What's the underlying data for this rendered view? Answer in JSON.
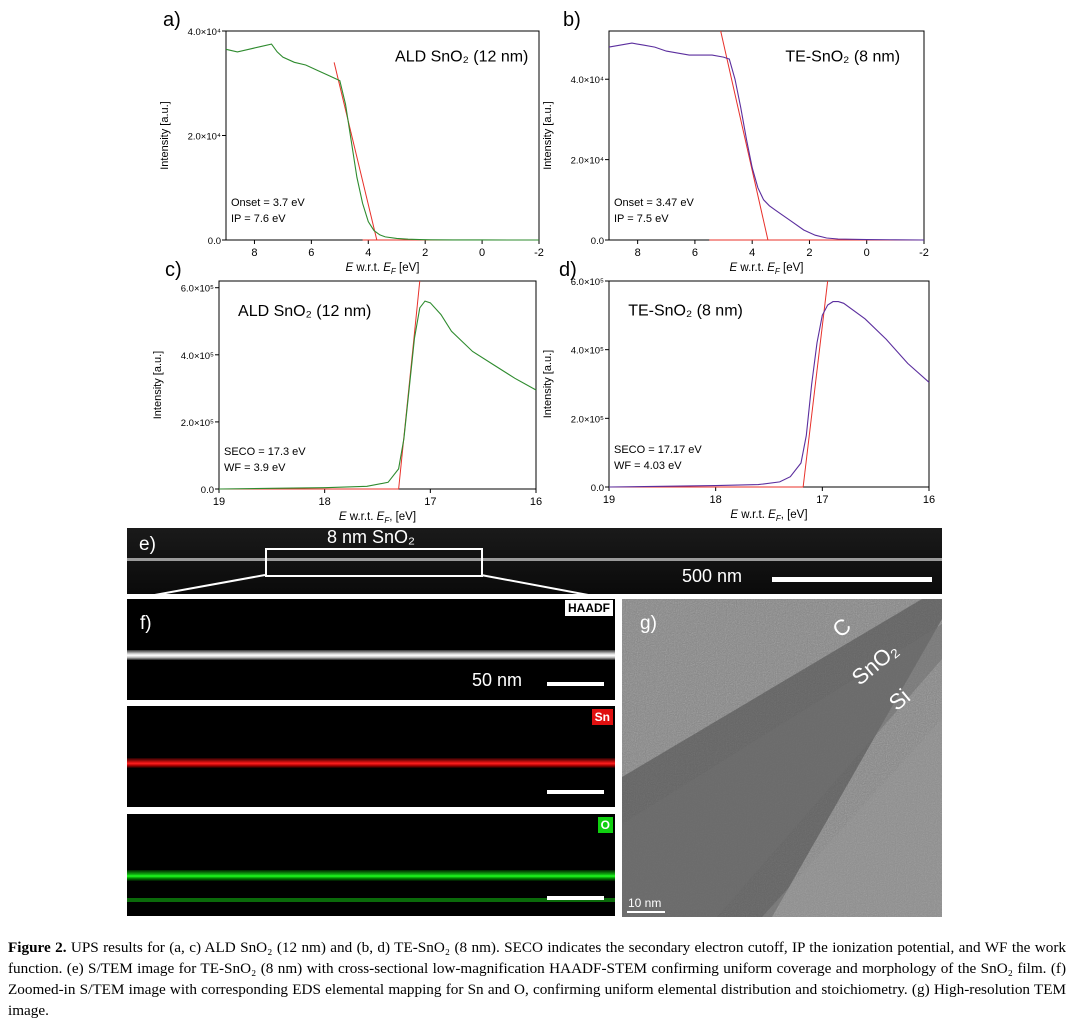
{
  "charts": [
    {
      "panel": "a)",
      "type": "line",
      "title": "ALD SnO₂ (12 nm)",
      "xlabel": "E w.r.t. E_F [eV]",
      "ylabel": "Intensity [a.u.]",
      "xlim": [
        9,
        -2
      ],
      "ylim": [
        0,
        40000
      ],
      "xticks": [
        "8",
        "6",
        "4",
        "2",
        "0",
        "-2"
      ],
      "yticks": [
        "0.0",
        "2.0×10⁴",
        "4.0×10⁴"
      ],
      "annotations": [
        "Onset = 3.7 eV",
        "IP = 7.6 eV"
      ],
      "series_color": "#2e8b2e",
      "x": [
        9,
        8.6,
        8.2,
        7.8,
        7.4,
        7.2,
        7.0,
        6.6,
        6.2,
        5.8,
        5.4,
        5.0,
        4.8,
        4.6,
        4.4,
        4.2,
        4.0,
        3.8,
        3.6,
        3.4,
        3.0,
        2.6,
        2.2,
        1.8,
        1.0,
        0,
        -1,
        -2
      ],
      "y": [
        36500,
        36000,
        36500,
        37000,
        37500,
        36000,
        35000,
        34000,
        33500,
        32500,
        31500,
        30500,
        26000,
        19000,
        12000,
        7000,
        3500,
        1800,
        1000,
        600,
        300,
        150,
        80,
        40,
        20,
        10,
        5,
        0
      ],
      "fit_lines": [
        {
          "x": [
            5.2,
            3.7
          ],
          "y": [
            34000,
            0
          ]
        },
        {
          "x": [
            4.2,
            -2
          ],
          "y": [
            0,
            0
          ]
        }
      ]
    },
    {
      "panel": "b)",
      "type": "line",
      "title": "TE-SnO₂ (8 nm)",
      "xlabel": "E w.r.t. E_F [eV]",
      "ylabel": "Intensity [a.u.]",
      "xlim": [
        9,
        -2
      ],
      "ylim": [
        0,
        52000
      ],
      "xticks": [
        "8",
        "6",
        "4",
        "2",
        "0",
        "-2"
      ],
      "yticks": [
        "0.0",
        "2.0×10⁴",
        "4.0×10⁴"
      ],
      "annotations": [
        "Onset = 3.47 eV",
        "IP = 7.5 eV"
      ],
      "series_color": "#5b2e9e",
      "x": [
        9,
        8.6,
        8.2,
        7.8,
        7.4,
        7.0,
        6.6,
        6.2,
        5.8,
        5.4,
        5.0,
        4.8,
        4.6,
        4.4,
        4.2,
        4.0,
        3.8,
        3.6,
        3.4,
        3.2,
        3.0,
        2.6,
        2.2,
        1.8,
        1.4,
        1.0,
        0,
        -1,
        -2
      ],
      "y": [
        48000,
        48500,
        49000,
        48500,
        48000,
        47000,
        46500,
        46000,
        46000,
        46000,
        45500,
        45000,
        40000,
        33000,
        25000,
        18000,
        13000,
        10000,
        8500,
        7500,
        6500,
        4500,
        2500,
        1200,
        500,
        250,
        100,
        50,
        0
      ],
      "fit_lines": [
        {
          "x": [
            5.1,
            3.45
          ],
          "y": [
            55000,
            0
          ]
        },
        {
          "x": [
            5.5,
            -2
          ],
          "y": [
            0,
            0
          ]
        }
      ]
    },
    {
      "panel": "c)",
      "type": "line",
      "title": "ALD SnO₂ (12 nm)",
      "xlabel": "E w.r.t. E_F, [eV]",
      "ylabel": "Intensity [a.u.]",
      "xlim": [
        19,
        16
      ],
      "ylim": [
        0,
        620000
      ],
      "xticks": [
        "19",
        "18",
        "17",
        "16"
      ],
      "yticks": [
        "0.0",
        "2.0×10⁵",
        "4.0×10⁵",
        "6.0×10⁵"
      ],
      "annotations": [
        "SECO = 17.3 eV",
        "WF = 3.9 eV"
      ],
      "series_color": "#2e8b2e",
      "x": [
        19,
        18.5,
        18.0,
        17.6,
        17.4,
        17.3,
        17.25,
        17.2,
        17.15,
        17.1,
        17.05,
        17.0,
        16.9,
        16.8,
        16.6,
        16.4,
        16.2,
        16.0
      ],
      "y": [
        0,
        2000,
        4000,
        8000,
        20000,
        60000,
        150000,
        300000,
        450000,
        540000,
        560000,
        555000,
        520000,
        470000,
        410000,
        370000,
        330000,
        295000
      ],
      "fit_lines": [
        {
          "x": [
            17.3,
            17.1
          ],
          "y": [
            0,
            620000
          ]
        },
        {
          "x": [
            19,
            17.3
          ],
          "y": [
            0,
            0
          ]
        }
      ]
    },
    {
      "panel": "d)",
      "type": "line",
      "title": "TE-SnO₂ (8 nm)",
      "xlabel": "E w.r.t. E_F, [eV]",
      "ylabel": "Intensity [a.u.]",
      "xlim": [
        19,
        16
      ],
      "ylim": [
        0,
        600000
      ],
      "xticks": [
        "19",
        "18",
        "17",
        "16"
      ],
      "yticks": [
        "0.0",
        "2.0×10⁵",
        "4.0×10⁵",
        "6.0×10⁵"
      ],
      "annotations": [
        "SECO = 17.17 eV",
        "WF = 4.03 eV"
      ],
      "series_color": "#5b2e9e",
      "x": [
        19,
        18.5,
        18.0,
        17.6,
        17.4,
        17.3,
        17.2,
        17.15,
        17.1,
        17.05,
        17.0,
        16.95,
        16.9,
        16.85,
        16.8,
        16.6,
        16.4,
        16.2,
        16.0
      ],
      "y": [
        0,
        2000,
        4000,
        7000,
        15000,
        30000,
        70000,
        150000,
        300000,
        420000,
        500000,
        530000,
        540000,
        540000,
        535000,
        490000,
        430000,
        360000,
        305000
      ],
      "fit_lines": [
        {
          "x": [
            17.18,
            16.95
          ],
          "y": [
            0,
            620000
          ]
        },
        {
          "x": [
            19,
            17.18
          ],
          "y": [
            0,
            0
          ]
        }
      ]
    }
  ],
  "images": {
    "e": {
      "panel": "e)",
      "label": "8 nm SnO₂",
      "scale": "500 nm"
    },
    "f": {
      "panel": "f)",
      "tags": [
        "HAADF",
        "Sn",
        "O"
      ],
      "scale": "50 nm",
      "tag_colors": {
        "HAADF": "#ffffff",
        "Sn": "#e01010",
        "O": "#10d010"
      }
    },
    "g": {
      "panel": "g)",
      "labels": [
        "C",
        "SnO₂",
        "Si"
      ],
      "scale": "10 nm"
    }
  },
  "caption": {
    "lead": "Figure 2.",
    "text": " UPS results for (a, c) ALD SnO₂ (12 nm) and (b, d) TE-SnO₂ (8 nm). SECO indicates the secondary electron cutoff, IP the ionization potential, and WF the work function. (e) S/TEM image for TE-SnO₂ (8 nm) with cross-sectional low-magnification HAADF-STEM confirming uniform coverage and morphology of the SnO₂ film. (f) Zoomed-in S/TEM image with corresponding EDS elemental mapping for Sn and O, confirming uniform elemental distribution and stoichiometry. (g) High-resolution TEM image."
  }
}
